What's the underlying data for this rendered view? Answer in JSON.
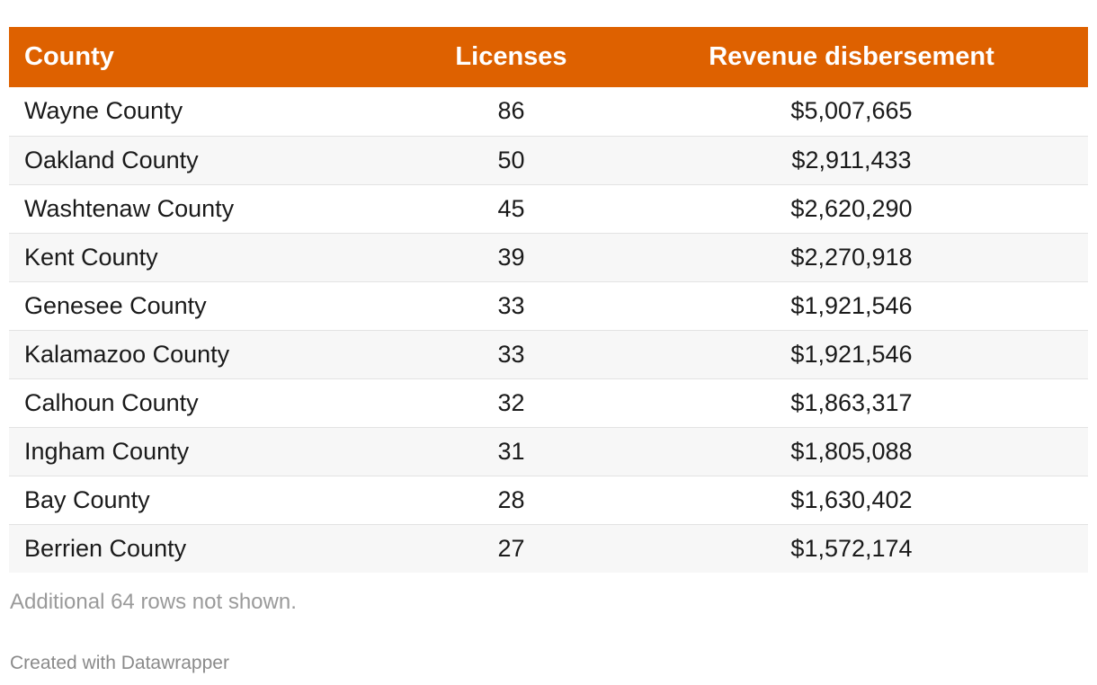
{
  "chart_data": {
    "type": "table",
    "columns": [
      "County",
      "Licenses",
      "Revenue disbersement"
    ],
    "rows": [
      {
        "county": "Wayne County",
        "licenses": "86",
        "revenue": "$5,007,665"
      },
      {
        "county": "Oakland County",
        "licenses": "50",
        "revenue": "$2,911,433"
      },
      {
        "county": "Washtenaw County",
        "licenses": "45",
        "revenue": "$2,620,290"
      },
      {
        "county": "Kent County",
        "licenses": "39",
        "revenue": "$2,270,918"
      },
      {
        "county": "Genesee County",
        "licenses": "33",
        "revenue": "$1,921,546"
      },
      {
        "county": "Kalamazoo County",
        "licenses": "33",
        "revenue": "$1,921,546"
      },
      {
        "county": "Calhoun County",
        "licenses": "32",
        "revenue": "$1,863,317"
      },
      {
        "county": "Ingham County",
        "licenses": "31",
        "revenue": "$1,805,088"
      },
      {
        "county": "Bay County",
        "licenses": "28",
        "revenue": "$1,630,402"
      },
      {
        "county": "Berrien County",
        "licenses": "27",
        "revenue": "$1,572,174"
      }
    ],
    "notes": "Additional 64 rows not shown.",
    "credit": "Created with Datawrapper"
  },
  "colors": {
    "header_bg": "#de6100",
    "header_text": "#ffffff",
    "row_alt": "#f7f7f7",
    "note_text": "#9a9a9a"
  }
}
